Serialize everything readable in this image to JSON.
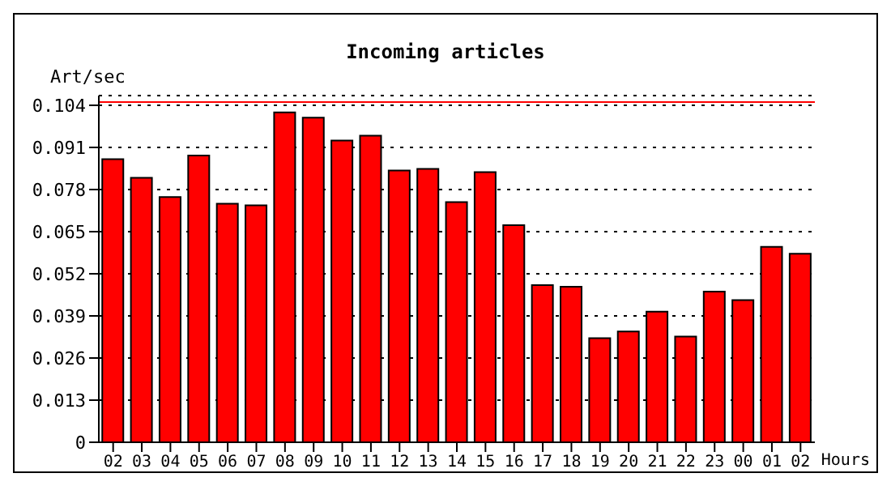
{
  "chart_data": {
    "type": "bar",
    "title": "Incoming articles",
    "ylabel": "Art/sec",
    "xlabel": "Hours",
    "categories": [
      "02",
      "03",
      "04",
      "05",
      "06",
      "07",
      "08",
      "09",
      "10",
      "11",
      "12",
      "13",
      "14",
      "15",
      "16",
      "17",
      "18",
      "19",
      "20",
      "21",
      "22",
      "23",
      "00",
      "01",
      "02"
    ],
    "values": [
      0.0874,
      0.0816,
      0.0757,
      0.0885,
      0.0736,
      0.0731,
      0.1018,
      0.1002,
      0.0931,
      0.0946,
      0.0839,
      0.0844,
      0.0741,
      0.0834,
      0.067,
      0.0485,
      0.048,
      0.0321,
      0.0342,
      0.0403,
      0.0326,
      0.0465,
      0.0439,
      0.0603,
      0.0582
    ],
    "color": "#ff0000",
    "ylim": [
      0,
      0.107
    ],
    "yticks": [
      0,
      0.013,
      0.026,
      0.039,
      0.052,
      0.065,
      0.078,
      0.091,
      0.104
    ],
    "grid": "y",
    "ref_lines": [
      {
        "axis": "y",
        "value": 0.105,
        "color": "#ff0000"
      }
    ]
  }
}
